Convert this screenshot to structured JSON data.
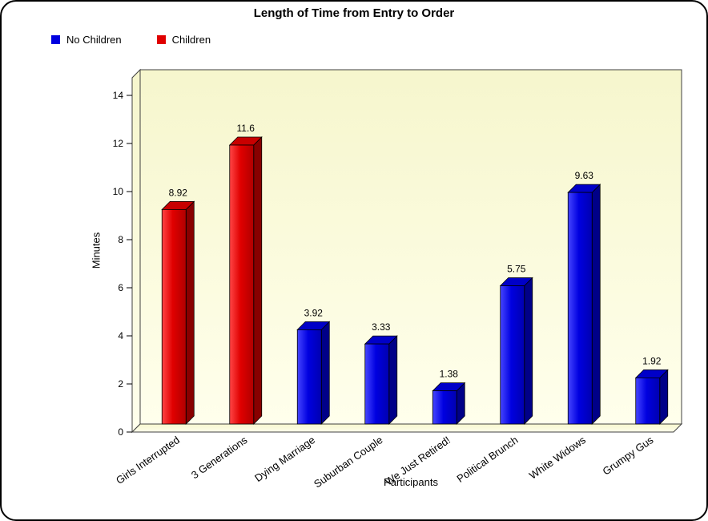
{
  "window": {
    "background": "#ffffff",
    "border_color": "#000000"
  },
  "chart_data": {
    "type": "bar",
    "title": "Length of Time from Entry to Order",
    "xlabel": "Participants",
    "ylabel": "Minutes",
    "ylim": [
      0,
      14
    ],
    "ytick_step": 2,
    "yticks": [
      0,
      2,
      4,
      6,
      8,
      10,
      12,
      14
    ],
    "categories": [
      "Girls Interrupted",
      "3 Generations",
      "Dying Marriage",
      "Suburban Couple",
      "We Just Retired!",
      "Political Brunch",
      "White Widows",
      "Grumpy Gus"
    ],
    "values": [
      8.92,
      11.6,
      3.92,
      3.33,
      1.38,
      5.75,
      9.63,
      1.92
    ],
    "value_labels": [
      "8.92",
      "11.6",
      "3.92",
      "3.33",
      "1.38",
      "5.75",
      "9.63",
      "1.92"
    ],
    "series_by_bar": [
      "Children",
      "Children",
      "No Children",
      "No Children",
      "No Children",
      "No Children",
      "No Children",
      "No Children"
    ],
    "legend": [
      {
        "label": "No Children",
        "color": "#0000e0"
      },
      {
        "label": "Children",
        "color": "#e00000"
      }
    ],
    "legend_position": "top-left",
    "grid": false,
    "colors": {
      "No Children": {
        "front_light": "#4646ff",
        "front": "#0000e0",
        "front_dark": "#0000b0",
        "side": "#000088",
        "top": "#0000c8"
      },
      "Children": {
        "front_light": "#ff4646",
        "front": "#e00000",
        "front_dark": "#b00000",
        "side": "#880000",
        "top": "#c80000"
      }
    },
    "plot_background": {
      "top": "#f6f6cd",
      "bottom": "#ffffec"
    },
    "text_color": "#000000"
  }
}
